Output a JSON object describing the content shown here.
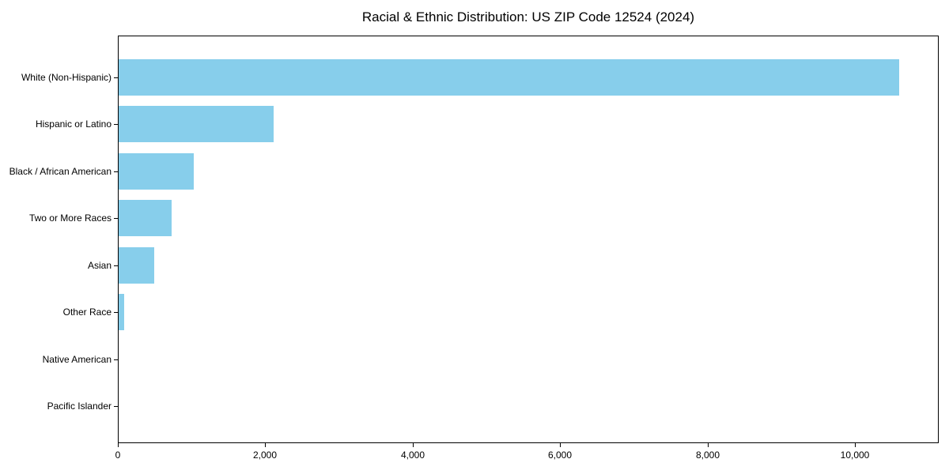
{
  "title": "Racial & Ethnic Distribution: US ZIP Code 12524 (2024)",
  "chart_data": {
    "type": "bar",
    "orientation": "horizontal",
    "title": "Racial & Ethnic Distribution: US ZIP Code 12524 (2024)",
    "categories": [
      "White (Non-Hispanic)",
      "Hispanic or Latino",
      "Black / African American",
      "Two or More Races",
      "Asian",
      "Other Race",
      "Native American",
      "Pacific Islander"
    ],
    "values": [
      10590,
      2100,
      1020,
      720,
      480,
      70,
      0,
      0
    ],
    "bar_color": "#87CEEB",
    "xlabel": "",
    "ylabel": "",
    "xlim": [
      0,
      11137
    ],
    "x_ticks": [
      0,
      2000,
      4000,
      6000,
      8000,
      10000
    ],
    "x_tick_labels": [
      "0",
      "2,000",
      "4,000",
      "6,000",
      "8,000",
      "10,000"
    ],
    "grid": false,
    "legend": "none",
    "background_color": "#ffffff",
    "text_color": "#000000"
  }
}
